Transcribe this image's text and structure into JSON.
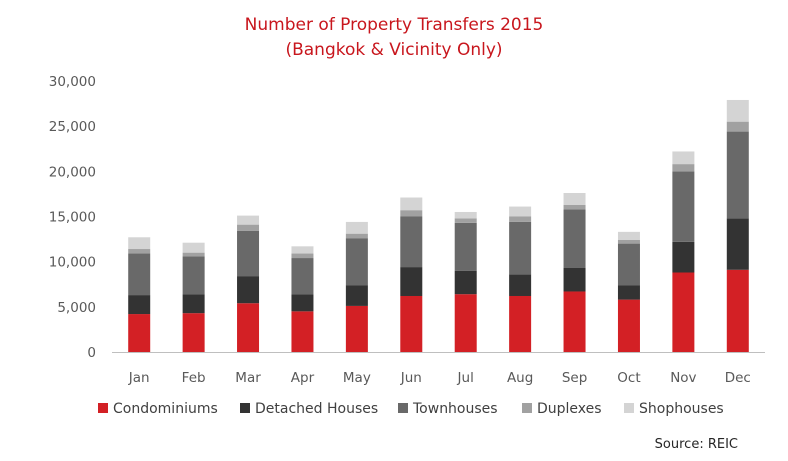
{
  "chart_data": {
    "type": "bar",
    "stacked": true,
    "title": "Number of Property Transfers 2015",
    "subtitle": "(Bangkok & Vicinity Only)",
    "xlabel": "",
    "ylabel": "",
    "ylim": [
      0,
      30000
    ],
    "yticks": [
      "0",
      "5,000",
      "10,000",
      "15,000",
      "20,000",
      "25,000",
      "30,000"
    ],
    "grid": false,
    "legend_position": "bottom",
    "categories": [
      "Jan",
      "Feb",
      "Mar",
      "Apr",
      "May",
      "Jun",
      "Jul",
      "Aug",
      "Sep",
      "Oct",
      "Nov",
      "Dec"
    ],
    "series": [
      {
        "name": "Condominiums",
        "color": "#d32025",
        "values": [
          4200,
          4300,
          5400,
          4500,
          5100,
          6200,
          6400,
          6200,
          6700,
          5800,
          8800,
          9100
        ]
      },
      {
        "name": "Detached Houses",
        "color": "#333333",
        "values": [
          2100,
          2100,
          3000,
          1900,
          2300,
          3200,
          2600,
          2400,
          2600,
          1600,
          3400,
          5700
        ]
      },
      {
        "name": "Townhouses",
        "color": "#696969",
        "values": [
          4600,
          4200,
          5000,
          4000,
          5200,
          5600,
          5300,
          5800,
          6500,
          4600,
          7800,
          9600
        ]
      },
      {
        "name": "Duplexes",
        "color": "#a1a1a1",
        "values": [
          500,
          400,
          700,
          500,
          500,
          700,
          500,
          600,
          500,
          400,
          800,
          1100
        ]
      },
      {
        "name": "Shophouses",
        "color": "#d4d4d4",
        "values": [
          1300,
          1100,
          1000,
          800,
          1300,
          1400,
          700,
          1100,
          1300,
          900,
          1400,
          2400
        ]
      }
    ],
    "source": "Source: REIC"
  }
}
